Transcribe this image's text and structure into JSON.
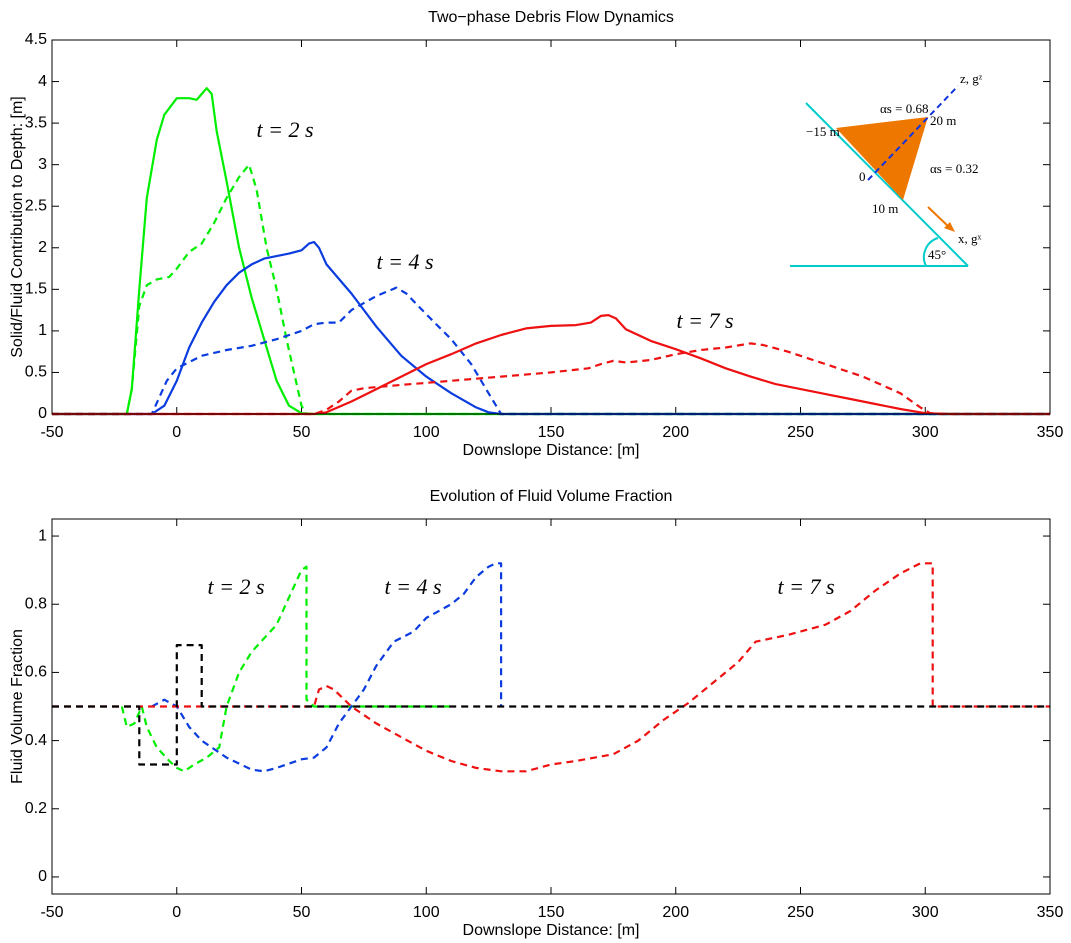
{
  "chart_data": [
    {
      "type": "line",
      "title": "Two−phase Debris Flow Dynamics",
      "xlabel": "Downslope Distance: [m]",
      "ylabel": "Solid/Fluid Contribution to Depth: [m]",
      "xlim": [
        -50,
        350
      ],
      "xticks": [
        -50,
        0,
        50,
        100,
        150,
        200,
        250,
        300,
        350
      ],
      "ylim": [
        0,
        4.5
      ],
      "yticks": [
        0,
        0.5,
        1,
        1.5,
        2,
        2.5,
        3,
        3.5,
        4,
        4.5
      ],
      "grid": false,
      "annotations": [
        "t = 2 s",
        "t = 4 s",
        "t = 7 s"
      ],
      "inset_labels": [
        "αs = 0.68",
        "z, gᶻ",
        "−15 m",
        "20 m",
        "0",
        "αs = 0.32",
        "10 m",
        "x, gˣ",
        "45°"
      ],
      "series": [
        {
          "color": "#00ee00",
          "style": "solid",
          "x": [
            -50,
            -20,
            -18,
            -15,
            -12,
            -8,
            -5,
            0,
            5,
            8,
            10,
            12,
            14,
            16,
            20,
            25,
            30,
            35,
            40,
            45,
            50,
            55,
            350
          ],
          "values": [
            0,
            0,
            0.3,
            1.5,
            2.6,
            3.3,
            3.6,
            3.8,
            3.8,
            3.78,
            3.85,
            3.92,
            3.85,
            3.4,
            2.8,
            2.0,
            1.4,
            0.9,
            0.4,
            0.1,
            0.01,
            0,
            0
          ]
        },
        {
          "color": "#00ee00",
          "style": "dashed",
          "x": [
            -50,
            -20,
            -18,
            -15,
            -12,
            -8,
            -3,
            0,
            5,
            10,
            15,
            20,
            25,
            29,
            32,
            36,
            40,
            44,
            47,
            50,
            52,
            350
          ],
          "values": [
            0,
            0,
            0.3,
            1.3,
            1.55,
            1.62,
            1.65,
            1.75,
            1.95,
            2.05,
            2.3,
            2.6,
            2.85,
            3.0,
            2.7,
            2.0,
            1.5,
            0.9,
            0.5,
            0.1,
            0,
            0
          ]
        },
        {
          "color": "#0a3ce0",
          "style": "solid",
          "x": [
            -50,
            -10,
            -5,
            0,
            5,
            10,
            15,
            20,
            25,
            30,
            35,
            40,
            45,
            50,
            53,
            55,
            57,
            60,
            70,
            80,
            90,
            100,
            110,
            120,
            125,
            130,
            350
          ],
          "values": [
            0,
            0,
            0.1,
            0.4,
            0.8,
            1.1,
            1.35,
            1.55,
            1.7,
            1.8,
            1.87,
            1.9,
            1.93,
            1.97,
            2.05,
            2.07,
            2.0,
            1.8,
            1.45,
            1.05,
            0.7,
            0.45,
            0.25,
            0.08,
            0.02,
            0,
            0
          ]
        },
        {
          "color": "#0a3ce0",
          "style": "dashed",
          "x": [
            -50,
            -10,
            -7,
            -4,
            0,
            10,
            20,
            30,
            40,
            50,
            55,
            60,
            65,
            70,
            80,
            88,
            92,
            100,
            110,
            118,
            124,
            128,
            130,
            350
          ],
          "values": [
            0,
            0,
            0.2,
            0.4,
            0.55,
            0.7,
            0.77,
            0.82,
            0.9,
            1.0,
            1.08,
            1.1,
            1.1,
            1.25,
            1.42,
            1.52,
            1.45,
            1.2,
            0.9,
            0.6,
            0.3,
            0.1,
            0,
            0
          ]
        },
        {
          "color": "#ee1111",
          "style": "solid",
          "x": [
            -50,
            55,
            60,
            70,
            80,
            90,
            100,
            110,
            120,
            130,
            140,
            150,
            160,
            166,
            170,
            173,
            176,
            180,
            190,
            200,
            210,
            220,
            230,
            240,
            250,
            260,
            270,
            280,
            290,
            300,
            310,
            350
          ],
          "values": [
            0,
            0,
            0.02,
            0.15,
            0.3,
            0.45,
            0.6,
            0.72,
            0.85,
            0.95,
            1.03,
            1.06,
            1.07,
            1.1,
            1.18,
            1.19,
            1.15,
            1.02,
            0.88,
            0.78,
            0.67,
            0.55,
            0.45,
            0.36,
            0.3,
            0.24,
            0.18,
            0.12,
            0.06,
            0.01,
            0,
            0
          ]
        },
        {
          "color": "#ee1111",
          "style": "dashed",
          "x": [
            -50,
            55,
            60,
            65,
            70,
            75,
            90,
            110,
            130,
            150,
            165,
            170,
            175,
            180,
            190,
            200,
            210,
            220,
            230,
            235,
            245,
            260,
            275,
            290,
            298,
            302,
            305,
            350
          ],
          "values": [
            0,
            0,
            0.05,
            0.15,
            0.28,
            0.31,
            0.35,
            0.4,
            0.45,
            0.5,
            0.55,
            0.6,
            0.64,
            0.62,
            0.65,
            0.72,
            0.77,
            0.8,
            0.85,
            0.83,
            0.75,
            0.6,
            0.45,
            0.25,
            0.08,
            0.01,
            0,
            0
          ]
        }
      ]
    },
    {
      "type": "line",
      "title": "Evolution of Fluid Volume Fraction",
      "xlabel": "Downslope Distance: [m]",
      "ylabel": "Fluid Volume Fraction",
      "xlim": [
        -50,
        350
      ],
      "xticks": [
        -50,
        0,
        50,
        100,
        150,
        200,
        250,
        300,
        350
      ],
      "ylim": [
        -0.05,
        1.05
      ],
      "yticks": [
        0,
        0.2,
        0.4,
        0.6,
        0.8,
        1
      ],
      "grid": false,
      "annotations": [
        "t = 2 s",
        "t = 4 s",
        "t = 7 s"
      ],
      "series": [
        {
          "color": "#00ee00",
          "style": "dashed",
          "x": [
            -22,
            -20,
            -17,
            -14,
            -12,
            -8,
            -3,
            0,
            3,
            7,
            12,
            17,
            20,
            25,
            30,
            35,
            40,
            45,
            50,
            52,
            52,
            55,
            110
          ],
          "values": [
            0.5,
            0.44,
            0.45,
            0.5,
            0.44,
            0.38,
            0.34,
            0.32,
            0.31,
            0.33,
            0.35,
            0.38,
            0.5,
            0.6,
            0.66,
            0.7,
            0.74,
            0.82,
            0.9,
            0.91,
            0.52,
            0.5,
            0.5
          ]
        },
        {
          "color": "#0a3ce0",
          "style": "dashed",
          "x": [
            -10,
            -5,
            0,
            5,
            10,
            20,
            30,
            35,
            40,
            50,
            55,
            60,
            65,
            70,
            75,
            80,
            87,
            95,
            100,
            110,
            115,
            120,
            125,
            128,
            130,
            130
          ],
          "values": [
            0.5,
            0.52,
            0.5,
            0.44,
            0.4,
            0.35,
            0.315,
            0.31,
            0.32,
            0.345,
            0.35,
            0.38,
            0.45,
            0.5,
            0.55,
            0.62,
            0.69,
            0.72,
            0.76,
            0.8,
            0.83,
            0.88,
            0.91,
            0.92,
            0.92,
            0.5
          ]
        },
        {
          "color": "#ee1111",
          "style": "dashed",
          "x": [
            -50,
            55,
            57,
            60,
            63,
            70,
            80,
            90,
            100,
            110,
            120,
            130,
            140,
            150,
            160,
            175,
            185,
            195,
            205,
            215,
            225,
            232,
            245,
            260,
            270,
            280,
            290,
            298,
            303,
            303,
            350
          ],
          "values": [
            0.5,
            0.5,
            0.55,
            0.56,
            0.55,
            0.5,
            0.45,
            0.41,
            0.37,
            0.34,
            0.32,
            0.31,
            0.31,
            0.33,
            0.34,
            0.36,
            0.4,
            0.46,
            0.51,
            0.57,
            0.63,
            0.69,
            0.71,
            0.74,
            0.78,
            0.84,
            0.89,
            0.92,
            0.92,
            0.5,
            0.5
          ]
        },
        {
          "color": "#000000",
          "style": "dashed",
          "x": [
            -50,
            -15,
            -15,
            0,
            0,
            10,
            10,
            350
          ],
          "values": [
            0.5,
            0.5,
            0.33,
            0.33,
            0.68,
            0.68,
            0.5,
            0.5
          ]
        }
      ]
    }
  ]
}
